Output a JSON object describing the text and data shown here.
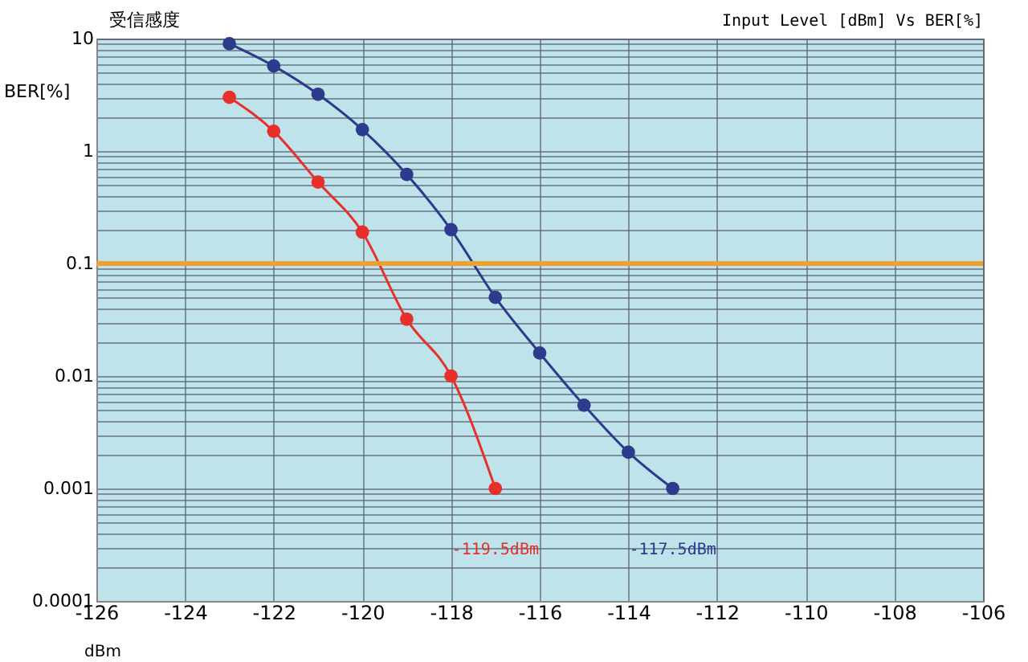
{
  "chart_data": {
    "type": "line",
    "title": "受信感度",
    "subtitle": "Input Level [dBm] Vs BER[%]",
    "xlabel": "dBm",
    "ylabel": "BER[%]",
    "series": [
      {
        "color": "#e8302a",
        "x": [
          -123,
          -122,
          -121,
          -120,
          -119,
          -118,
          -117
        ],
        "values": [
          3,
          1.5,
          0.53,
          0.19,
          0.032,
          0.01,
          0.001
        ]
      },
      {
        "color": "#2e3a8c",
        "x": [
          -123,
          -122,
          -121,
          -120,
          -119,
          -118,
          -117,
          -116,
          -115,
          -114,
          -113
        ],
        "values": [
          9,
          5.7,
          3.2,
          1.55,
          0.62,
          0.2,
          0.05,
          0.016,
          0.0055,
          0.0021,
          0.001
        ]
      }
    ],
    "annotations": [
      "-119.5dBm",
      "-117.5dBm"
    ],
    "ref_lines": [
      {
        "axis": "y",
        "value": 0.1,
        "color": "#f0a030"
      }
    ],
    "xlim": [
      -126,
      -106
    ],
    "xticks": [
      -126,
      -124,
      -122,
      -120,
      -118,
      -116,
      -114,
      -112,
      -110,
      -108,
      -106
    ],
    "ylim": [
      0.0001,
      10
    ],
    "yticks": [
      0.0001,
      0.001,
      0.01,
      0.1,
      1,
      10
    ],
    "log": true,
    "grid": true,
    "marker": "circle",
    "line_style": "solid"
  }
}
